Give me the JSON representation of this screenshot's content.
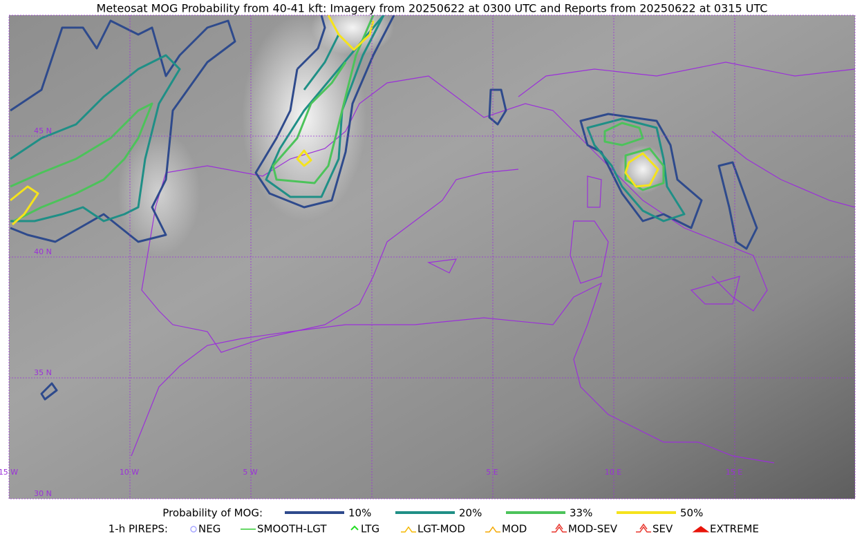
{
  "title": "Meteosat MOG Probability from 40-41 kft: Imagery from 20250622 at 0300 UTC and Reports from 20250622 at 0315 UTC",
  "map": {
    "lat_labels": [
      "45 N",
      "40 N",
      "35 N",
      "30 N"
    ],
    "lon_labels": [
      "15 W",
      "10 W",
      "5 W",
      "5 E",
      "10 E",
      "15 E"
    ],
    "grid_color": "#9b30d9"
  },
  "legend": {
    "probability": {
      "label": "Probability of MOG:",
      "items": [
        {
          "label": "10%",
          "color": "#2e4a8c"
        },
        {
          "label": "20%",
          "color": "#1f8f86"
        },
        {
          "label": "33%",
          "color": "#4cc35a"
        },
        {
          "label": "50%",
          "color": "#f5e31c"
        }
      ]
    },
    "pireps": {
      "label": "1-h PIREPS:",
      "items": [
        {
          "label": "NEG",
          "color": "#a9a9ff"
        },
        {
          "label": "SMOOTH-LGT",
          "color": "#33cc33"
        },
        {
          "label": "LTG",
          "color": "#22dd22"
        },
        {
          "label": "LGT-MOD",
          "color": "#f5b800"
        },
        {
          "label": "MOD",
          "color": "#f5a800"
        },
        {
          "label": "MOD-SEV",
          "color": "#e8332a"
        },
        {
          "label": "SEV",
          "color": "#e8332a"
        },
        {
          "label": "EXTREME",
          "color": "#e8140a"
        }
      ]
    }
  }
}
